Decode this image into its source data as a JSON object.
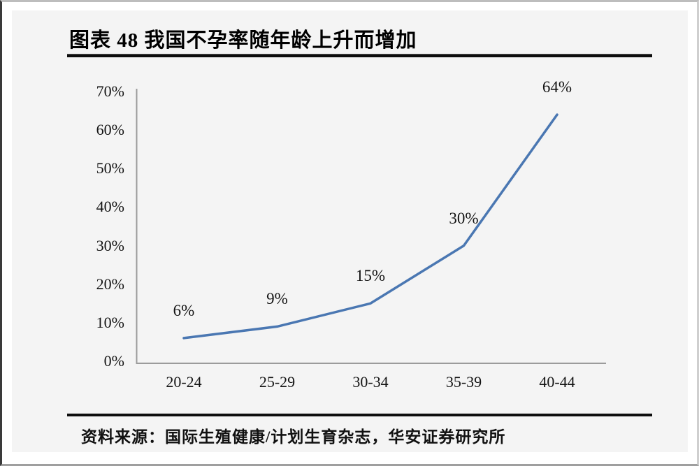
{
  "page": {
    "figure_title": "图表 48  我国不孕率随年龄上升而增加",
    "source": "资料来源：国际生殖健康/计划生育杂志，华安证券研究所"
  },
  "chart_data": {
    "type": "line",
    "figure_label": "图表 48",
    "title": "我国不孕率随年龄上升而增加",
    "categories": [
      "20-24",
      "25-29",
      "30-34",
      "35-39",
      "40-44"
    ],
    "series": [
      {
        "name": "不孕率",
        "values": [
          6,
          9,
          15,
          30,
          64
        ]
      }
    ],
    "values": [
      6,
      9,
      15,
      30,
      64
    ],
    "data_labels": [
      "6%",
      "9%",
      "15%",
      "30%",
      "64%"
    ],
    "xlabel": "",
    "ylabel": "",
    "ylim": [
      0,
      70
    ],
    "ytick_step": 10,
    "ytick_labels": [
      "0%",
      "10%",
      "20%",
      "30%",
      "40%",
      "50%",
      "60%",
      "70%"
    ],
    "grid": false,
    "legend": "none",
    "line_color": "#4a77b2",
    "axis_color": "#9b9b9b",
    "background_color": "#f4f4f4"
  }
}
